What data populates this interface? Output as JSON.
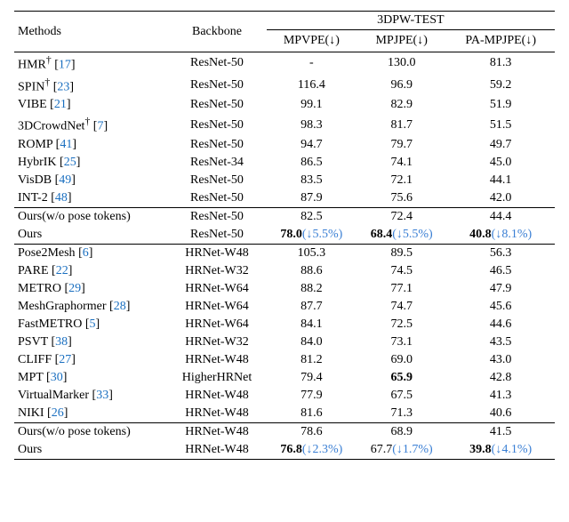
{
  "header": {
    "methods": "Methods",
    "backbone": "Backbone",
    "group": "3DPW-TEST",
    "c1": "MPVPE(↓)",
    "c2": "MPJPE(↓)",
    "c3": "PA-MPJPE(↓)"
  },
  "colors": {
    "citation": "#1a6fc0",
    "delta": "#3a7fd4",
    "text": "#000000",
    "background": "#ffffff"
  },
  "sections": [
    {
      "rows": [
        {
          "name": "HMR",
          "dagger": true,
          "cite": "17",
          "backbone": "ResNet-50",
          "c1": "-",
          "c2": "130.0",
          "c3": "81.3"
        },
        {
          "name": "SPIN",
          "dagger": true,
          "cite": "23",
          "backbone": "ResNet-50",
          "c1": "116.4",
          "c2": "96.9",
          "c3": "59.2"
        },
        {
          "name": "VIBE",
          "dagger": false,
          "cite": "21",
          "backbone": "ResNet-50",
          "c1": "99.1",
          "c2": "82.9",
          "c3": "51.9"
        },
        {
          "name": "3DCrowdNet",
          "dagger": true,
          "cite": "7",
          "backbone": "ResNet-50",
          "c1": "98.3",
          "c2": "81.7",
          "c3": "51.5"
        },
        {
          "name": "ROMP",
          "dagger": false,
          "cite": "41",
          "backbone": "ResNet-50",
          "c1": "94.7",
          "c2": "79.7",
          "c3": "49.7"
        },
        {
          "name": "HybrIK",
          "dagger": false,
          "cite": "25",
          "backbone": "ResNet-34",
          "c1": "86.5",
          "c2": "74.1",
          "c3": "45.0"
        },
        {
          "name": "VisDB",
          "dagger": false,
          "cite": "49",
          "backbone": "ResNet-50",
          "c1": "83.5",
          "c2": "72.1",
          "c3": "44.1"
        },
        {
          "name": "INT-2",
          "dagger": false,
          "cite": "48",
          "backbone": "ResNet-50",
          "c1": "87.9",
          "c2": "75.6",
          "c3": "42.0"
        }
      ],
      "ours": [
        {
          "label": "Ours(w/o pose tokens)",
          "backbone": "ResNet-50",
          "c1": "82.5",
          "c2": "72.4",
          "c3": "44.4"
        },
        {
          "label": "Ours",
          "backbone": "ResNet-50",
          "c1": "78.0",
          "d1": "(↓5.5%)",
          "bold1": true,
          "c2": "68.4",
          "d2": "(↓5.5%)",
          "bold2": true,
          "c3": "40.8",
          "d3": "(↓8.1%)",
          "bold3": true
        }
      ]
    },
    {
      "rows": [
        {
          "name": "Pose2Mesh",
          "dagger": false,
          "cite": "6",
          "backbone": "HRNet-W48",
          "c1": "105.3",
          "c2": "89.5",
          "c3": "56.3"
        },
        {
          "name": "PARE",
          "dagger": false,
          "cite": "22",
          "backbone": "HRNet-W32",
          "c1": "88.6",
          "c2": "74.5",
          "c3": "46.5"
        },
        {
          "name": "METRO",
          "dagger": false,
          "cite": "29",
          "backbone": "HRNet-W64",
          "c1": "88.2",
          "c2": "77.1",
          "c3": "47.9"
        },
        {
          "name": "MeshGraphormer",
          "dagger": false,
          "cite": "28",
          "backbone": "HRNet-W64",
          "c1": "87.7",
          "c2": "74.7",
          "c3": "45.6"
        },
        {
          "name": "FastMETRO",
          "dagger": false,
          "cite": "5",
          "backbone": "HRNet-W64",
          "c1": "84.1",
          "c2": "72.5",
          "c3": "44.6"
        },
        {
          "name": "PSVT",
          "dagger": false,
          "cite": "38",
          "backbone": "HRNet-W32",
          "c1": "84.0",
          "c2": "73.1",
          "c3": "43.5"
        },
        {
          "name": "CLIFF",
          "dagger": false,
          "cite": "27",
          "backbone": "HRNet-W48",
          "c1": "81.2",
          "c2": "69.0",
          "c3": "43.0"
        },
        {
          "name": "MPT",
          "dagger": false,
          "cite": "30",
          "backbone": "HigherHRNet",
          "c1": "79.4",
          "c2": "65.9",
          "c2bold": true,
          "c3": "42.8"
        },
        {
          "name": "VirtualMarker",
          "dagger": false,
          "cite": "33",
          "backbone": "HRNet-W48",
          "c1": "77.9",
          "c2": "67.5",
          "c3": "41.3"
        },
        {
          "name": "NIKI",
          "dagger": false,
          "cite": "26",
          "backbone": "HRNet-W48",
          "c1": "81.6",
          "c2": "71.3",
          "c3": "40.6"
        }
      ],
      "ours": [
        {
          "label": "Ours(w/o pose tokens)",
          "backbone": "HRNet-W48",
          "c1": "78.6",
          "c2": "68.9",
          "c3": "41.5"
        },
        {
          "label": "Ours",
          "backbone": "HRNet-W48",
          "c1": "76.8",
          "d1": "(↓2.3%)",
          "bold1": true,
          "c2": "67.7",
          "d2": "(↓1.7%)",
          "bold2": false,
          "c3": "39.8",
          "d3": "(↓4.1%)",
          "bold3": true
        }
      ]
    }
  ]
}
